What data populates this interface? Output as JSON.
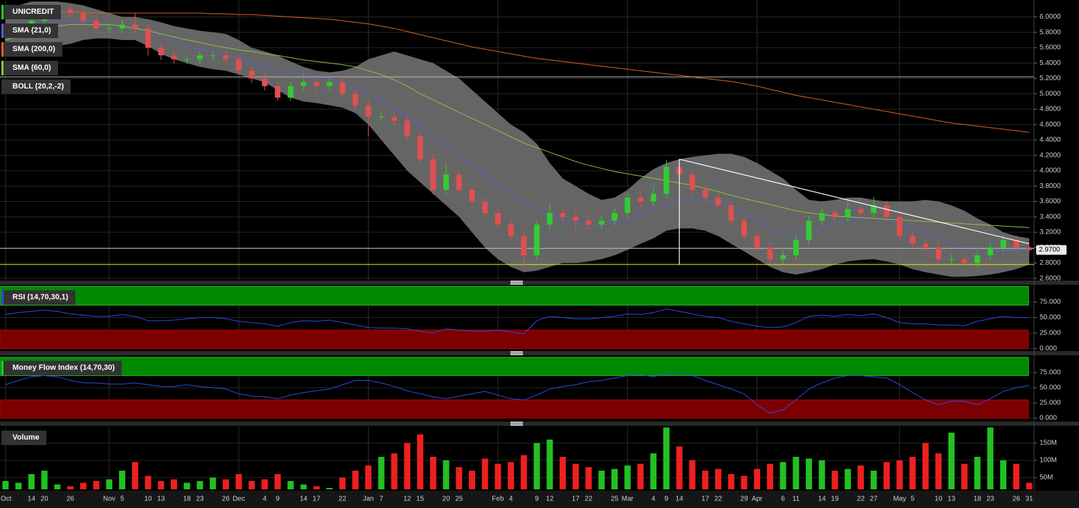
{
  "chart_data": [
    {
      "type": "candlestick",
      "title": "UNICREDIT",
      "title_color": "#22cc22",
      "categories": [
        "Oct",
        null,
        "14",
        "20",
        null,
        "26",
        null,
        null,
        "Nov",
        "5",
        null,
        "10",
        "13",
        null,
        "18",
        "23",
        null,
        "26",
        "Dec",
        null,
        "4",
        "9",
        null,
        "14",
        "17",
        null,
        "22",
        null,
        "Jan",
        "7",
        null,
        "12",
        "15",
        null,
        "20",
        "25",
        null,
        null,
        "Feb",
        "4",
        null,
        "9",
        "12",
        null,
        "17",
        "22",
        null,
        "25",
        "Mar",
        null,
        "4",
        "9",
        "14",
        null,
        "17",
        "22",
        null,
        "29",
        "Apr",
        null,
        "6",
        "11",
        null,
        "14",
        "19",
        null,
        "22",
        "27",
        null,
        "May",
        "5",
        null,
        "10",
        "13",
        null,
        "18",
        "23",
        null,
        "26",
        "31"
      ],
      "open": [
        5.75,
        5.8,
        5.85,
        5.95,
        6.05,
        6.1,
        6.05,
        5.95,
        5.85,
        5.85,
        5.9,
        5.85,
        5.6,
        5.5,
        5.45,
        5.45,
        5.5,
        5.5,
        5.45,
        5.3,
        5.2,
        5.1,
        4.95,
        5.1,
        5.15,
        5.1,
        5.15,
        5.0,
        4.85,
        4.7,
        4.7,
        4.65,
        4.45,
        4.15,
        3.75,
        3.95,
        3.75,
        3.6,
        3.45,
        3.3,
        3.15,
        2.9,
        3.3,
        3.45,
        3.4,
        3.35,
        3.3,
        3.35,
        3.45,
        3.65,
        3.6,
        3.7,
        4.05,
        3.95,
        3.75,
        3.65,
        3.55,
        3.35,
        3.15,
        3.0,
        2.85,
        2.9,
        3.1,
        3.35,
        3.45,
        3.4,
        3.5,
        3.45,
        3.55,
        3.4,
        3.15,
        3.05,
        3.0,
        2.85,
        2.85,
        2.8,
        2.9,
        3.0,
        3.1,
        3.0
      ],
      "high": [
        5.86,
        5.91,
        6.01,
        6.11,
        6.16,
        6.16,
        6.11,
        6.01,
        5.91,
        5.96,
        6.05,
        5.91,
        5.66,
        5.56,
        5.51,
        5.56,
        5.56,
        5.56,
        5.51,
        5.36,
        5.26,
        5.16,
        5.16,
        5.26,
        5.21,
        5.21,
        5.21,
        5.06,
        4.91,
        4.76,
        4.78,
        4.71,
        4.51,
        4.21,
        4.11,
        4.01,
        3.81,
        3.66,
        3.51,
        3.36,
        3.21,
        3.36,
        3.58,
        3.55,
        3.46,
        3.41,
        3.41,
        3.51,
        3.71,
        3.76,
        3.8,
        4.14,
        4.11,
        4.01,
        3.81,
        3.71,
        3.61,
        3.41,
        3.21,
        3.06,
        2.96,
        3.16,
        3.41,
        3.51,
        3.51,
        3.6,
        3.56,
        3.66,
        3.61,
        3.46,
        3.21,
        3.11,
        3.06,
        2.91,
        2.91,
        2.96,
        3.06,
        3.16,
        3.16,
        3.03
      ],
      "low": [
        5.69,
        5.74,
        5.79,
        5.89,
        5.99,
        5.99,
        5.89,
        5.79,
        5.79,
        5.79,
        5.79,
        5.5,
        5.44,
        5.39,
        5.39,
        5.39,
        5.44,
        5.39,
        5.24,
        5.14,
        5.04,
        4.91,
        4.91,
        5.04,
        5.04,
        5.04,
        4.94,
        4.79,
        4.45,
        4.64,
        4.59,
        4.39,
        4.09,
        3.69,
        3.69,
        3.69,
        3.54,
        3.39,
        3.24,
        3.09,
        2.78,
        2.84,
        3.24,
        3.34,
        3.22,
        3.24,
        3.24,
        3.29,
        3.39,
        3.54,
        3.54,
        3.64,
        3.89,
        3.69,
        3.59,
        3.49,
        3.29,
        3.09,
        2.94,
        2.79,
        2.79,
        2.84,
        3.04,
        3.29,
        3.34,
        3.34,
        3.39,
        3.39,
        3.34,
        3.09,
        2.99,
        2.94,
        2.79,
        2.79,
        2.76,
        2.74,
        2.84,
        2.94,
        2.94,
        2.94
      ],
      "close": [
        5.8,
        5.85,
        5.95,
        6.05,
        6.1,
        6.05,
        5.95,
        5.85,
        5.85,
        5.9,
        5.85,
        5.6,
        5.5,
        5.45,
        5.45,
        5.5,
        5.5,
        5.45,
        5.3,
        5.2,
        5.1,
        4.95,
        5.1,
        5.15,
        5.1,
        5.15,
        5.0,
        4.85,
        4.7,
        4.7,
        4.65,
        4.45,
        4.15,
        3.75,
        3.95,
        3.75,
        3.6,
        3.45,
        3.3,
        3.15,
        2.9,
        3.3,
        3.45,
        3.4,
        3.35,
        3.3,
        3.35,
        3.45,
        3.65,
        3.6,
        3.7,
        4.05,
        3.95,
        3.75,
        3.65,
        3.55,
        3.35,
        3.15,
        3.0,
        2.85,
        2.9,
        3.1,
        3.35,
        3.45,
        3.4,
        3.5,
        3.45,
        3.55,
        3.4,
        3.15,
        3.05,
        3.0,
        2.85,
        2.85,
        2.8,
        2.9,
        3.0,
        3.1,
        3.0,
        2.97
      ],
      "up_color": "#33cc33",
      "down_color": "#e05050",
      "series": [
        {
          "name": "SMA (21,0)",
          "color": "#5b5bdc",
          "values": [
            5.75,
            5.8,
            5.85,
            5.9,
            5.93,
            5.95,
            5.95,
            5.92,
            5.9,
            5.88,
            5.85,
            5.8,
            5.75,
            5.68,
            5.62,
            5.58,
            5.55,
            5.5,
            5.45,
            5.4,
            5.35,
            5.3,
            5.27,
            5.25,
            5.22,
            5.2,
            5.15,
            5.08,
            5.0,
            4.92,
            4.82,
            4.7,
            4.58,
            4.45,
            4.32,
            4.2,
            4.08,
            3.95,
            3.82,
            3.7,
            3.58,
            3.5,
            3.42,
            3.36,
            3.33,
            3.3,
            3.3,
            3.32,
            3.36,
            3.42,
            3.48,
            3.55,
            3.6,
            3.62,
            3.62,
            3.6,
            3.55,
            3.45,
            3.35,
            3.25,
            3.18,
            3.15,
            3.18,
            3.25,
            3.32,
            3.36,
            3.38,
            3.38,
            3.36,
            3.32,
            3.25,
            3.18,
            3.12,
            3.06,
            3.0,
            2.97,
            2.96,
            2.96,
            2.97,
            2.98
          ]
        },
        {
          "name": "SMA (200,0)",
          "color": "#e0641e",
          "values": [
            6.06,
            6.06,
            6.06,
            6.06,
            6.06,
            6.06,
            6.06,
            6.05,
            6.05,
            6.05,
            6.05,
            6.05,
            6.05,
            6.05,
            6.05,
            6.05,
            6.04,
            6.04,
            6.03,
            6.03,
            6.02,
            6.01,
            6.0,
            5.99,
            5.98,
            5.97,
            5.95,
            5.93,
            5.91,
            5.88,
            5.85,
            5.81,
            5.77,
            5.73,
            5.69,
            5.65,
            5.61,
            5.58,
            5.55,
            5.52,
            5.49,
            5.46,
            5.44,
            5.42,
            5.4,
            5.38,
            5.36,
            5.34,
            5.32,
            5.3,
            5.28,
            5.26,
            5.24,
            5.22,
            5.2,
            5.18,
            5.16,
            5.13,
            5.1,
            5.06,
            5.02,
            4.98,
            4.95,
            4.92,
            4.89,
            4.86,
            4.83,
            4.8,
            4.77,
            4.74,
            4.71,
            4.68,
            4.65,
            4.62,
            4.6,
            4.58,
            4.56,
            4.54,
            4.52,
            4.5
          ]
        },
        {
          "name": "SMA (60,0)",
          "color": "#8cc63e",
          "values": [
            5.7,
            5.75,
            5.8,
            5.85,
            5.88,
            5.9,
            5.9,
            5.9,
            5.9,
            5.88,
            5.85,
            5.82,
            5.78,
            5.74,
            5.7,
            5.67,
            5.63,
            5.6,
            5.57,
            5.55,
            5.52,
            5.5,
            5.47,
            5.44,
            5.42,
            5.4,
            5.38,
            5.35,
            5.3,
            5.25,
            5.18,
            5.1,
            5.0,
            4.92,
            4.84,
            4.76,
            4.68,
            4.6,
            4.52,
            4.44,
            4.36,
            4.3,
            4.24,
            4.18,
            4.12,
            4.07,
            4.03,
            3.99,
            3.96,
            3.93,
            3.9,
            3.87,
            3.84,
            3.81,
            3.77,
            3.73,
            3.68,
            3.64,
            3.6,
            3.56,
            3.52,
            3.48,
            3.45,
            3.43,
            3.41,
            3.4,
            3.39,
            3.38,
            3.37,
            3.36,
            3.35,
            3.34,
            3.33,
            3.32,
            3.31,
            3.3,
            3.29,
            3.28,
            3.27,
            3.26
          ]
        }
      ],
      "band": {
        "name": "BOLL (20,2,-2)",
        "color": "#707070",
        "upper": [
          6.1,
          6.15,
          6.2,
          6.2,
          6.2,
          6.18,
          6.15,
          6.1,
          6.05,
          6.0,
          6.0,
          5.97,
          5.93,
          5.88,
          5.85,
          5.82,
          5.8,
          5.78,
          5.7,
          5.6,
          5.55,
          5.5,
          5.42,
          5.35,
          5.3,
          5.28,
          5.3,
          5.35,
          5.45,
          5.5,
          5.55,
          5.5,
          5.45,
          5.4,
          5.3,
          5.2,
          5.05,
          4.9,
          4.75,
          4.6,
          4.5,
          4.35,
          4.1,
          3.9,
          3.8,
          3.7,
          3.62,
          3.65,
          3.75,
          3.9,
          4.02,
          4.1,
          4.15,
          4.18,
          4.2,
          4.22,
          4.22,
          4.18,
          4.1,
          4.0,
          3.9,
          3.75,
          3.62,
          3.6,
          3.62,
          3.65,
          3.65,
          3.62,
          3.6,
          3.6,
          3.6,
          3.62,
          3.6,
          3.55,
          3.48,
          3.38,
          3.3,
          3.2,
          3.15,
          3.12
        ],
        "lower": [
          5.55,
          5.55,
          5.6,
          5.6,
          5.62,
          5.65,
          5.7,
          5.72,
          5.72,
          5.7,
          5.7,
          5.62,
          5.52,
          5.45,
          5.4,
          5.35,
          5.32,
          5.3,
          5.25,
          5.2,
          5.15,
          5.05,
          4.95,
          4.9,
          4.88,
          4.85,
          4.82,
          4.75,
          4.6,
          4.4,
          4.2,
          4.0,
          3.85,
          3.7,
          3.55,
          3.4,
          3.2,
          3.0,
          2.85,
          2.75,
          2.68,
          2.7,
          2.75,
          2.8,
          2.8,
          2.82,
          2.85,
          2.9,
          2.97,
          3.05,
          3.12,
          3.22,
          3.25,
          3.25,
          3.22,
          3.15,
          3.05,
          2.95,
          2.85,
          2.75,
          2.68,
          2.65,
          2.68,
          2.72,
          2.78,
          2.82,
          2.84,
          2.85,
          2.82,
          2.78,
          2.72,
          2.68,
          2.65,
          2.62,
          2.62,
          2.63,
          2.65,
          2.68,
          2.72,
          2.78
        ]
      },
      "hlines": [
        {
          "value": 5.22,
          "color": "#bbbbbb"
        },
        {
          "value": 2.99,
          "color": "#bbbbbb"
        },
        {
          "value": 2.78,
          "color": "#e8e800"
        }
      ],
      "drawings": [
        {
          "x": [
            52,
            79
          ],
          "values": [
            4.15,
            3.05
          ],
          "color": "#ffffff"
        },
        {
          "x": [
            52,
            52
          ],
          "values": [
            4.15,
            2.78
          ],
          "color": "#ffffff"
        }
      ],
      "last_price": {
        "value": 2.97,
        "label": "2.9700"
      },
      "ylim": [
        2.58,
        6.22
      ],
      "yticks": [
        {
          "value": 2.6,
          "label": "2.6000"
        },
        {
          "value": 2.8,
          "label": "2.8000"
        },
        {
          "value": 3.0,
          "label": "3.0000"
        },
        {
          "value": 3.2,
          "label": "3.2000"
        },
        {
          "value": 3.4,
          "label": "3.4000"
        },
        {
          "value": 3.6,
          "label": "3.6000"
        },
        {
          "value": 3.8,
          "label": "3.8000"
        },
        {
          "value": 4.0,
          "label": "4.0000"
        },
        {
          "value": 4.2,
          "label": "4.2000"
        },
        {
          "value": 4.4,
          "label": "4.4000"
        },
        {
          "value": 4.6,
          "label": "4.6000"
        },
        {
          "value": 4.8,
          "label": "4.8000"
        },
        {
          "value": 5.0,
          "label": "5.0000"
        },
        {
          "value": 5.2,
          "label": "5.2000"
        },
        {
          "value": 5.4,
          "label": "5.4000"
        },
        {
          "value": 5.6,
          "label": "5.6000"
        },
        {
          "value": 5.8,
          "label": "5.8000"
        },
        {
          "value": 6.0,
          "label": "6.0000"
        }
      ],
      "grid": true
    },
    {
      "type": "line",
      "title": "RSI (14,70,30,1)",
      "color": "#2a4de8",
      "overbought": 70,
      "oversold": 30,
      "values": [
        55,
        58,
        60,
        62,
        60,
        56,
        54,
        52,
        52,
        55,
        52,
        45,
        45,
        46,
        48,
        50,
        50,
        48,
        44,
        42,
        40,
        36,
        42,
        45,
        44,
        46,
        42,
        38,
        34,
        33,
        33,
        32,
        28,
        25,
        32,
        30,
        28,
        28,
        30,
        27,
        24,
        45,
        52,
        50,
        48,
        48,
        50,
        52,
        56,
        55,
        58,
        64,
        60,
        56,
        52,
        50,
        44,
        40,
        36,
        34,
        35,
        42,
        52,
        54,
        52,
        55,
        53,
        56,
        50,
        42,
        40,
        40,
        38,
        38,
        37,
        44,
        48,
        52,
        50,
        50
      ],
      "ylim": [
        0,
        100
      ],
      "yticks": [
        {
          "value": 0,
          "label": "0.000"
        },
        {
          "value": 25,
          "label": "25.000"
        },
        {
          "value": 50,
          "label": "50.000"
        },
        {
          "value": 75,
          "label": "75.000"
        }
      ]
    },
    {
      "type": "line",
      "title": "Money Flow Index (14,70,30)",
      "title_color": "#22cc22",
      "color": "#2a4de8",
      "overbought": 70,
      "oversold": 30,
      "values": [
        55,
        62,
        68,
        70,
        68,
        62,
        58,
        58,
        56,
        56,
        58,
        55,
        52,
        52,
        55,
        52,
        50,
        48,
        40,
        36,
        35,
        32,
        38,
        42,
        45,
        48,
        55,
        62,
        62,
        58,
        52,
        45,
        40,
        35,
        32,
        36,
        40,
        44,
        38,
        32,
        30,
        38,
        48,
        52,
        55,
        60,
        62,
        66,
        70,
        72,
        68,
        74,
        75,
        70,
        62,
        55,
        48,
        40,
        22,
        8,
        14,
        30,
        48,
        58,
        66,
        70,
        70,
        68,
        66,
        55,
        42,
        30,
        22,
        28,
        28,
        22,
        32,
        44,
        50,
        54
      ],
      "ylim": [
        0,
        100
      ],
      "yticks": [
        {
          "value": 0,
          "label": "0.000"
        },
        {
          "value": 25,
          "label": "25.000"
        },
        {
          "value": 50,
          "label": "50.000"
        },
        {
          "value": 75,
          "label": "75.000"
        }
      ]
    },
    {
      "type": "bar",
      "title": "Volume",
      "values": [
        40,
        35,
        60,
        70,
        30,
        25,
        35,
        40,
        45,
        70,
        95,
        55,
        40,
        45,
        35,
        40,
        50,
        45,
        60,
        40,
        45,
        60,
        40,
        30,
        25,
        20,
        50,
        70,
        85,
        110,
        120,
        150,
        175,
        110,
        100,
        80,
        70,
        105,
        90,
        95,
        115,
        150,
        160,
        110,
        90,
        80,
        70,
        75,
        85,
        90,
        120,
        195,
        140,
        100,
        70,
        75,
        60,
        55,
        75,
        90,
        95,
        110,
        105,
        100,
        70,
        75,
        85,
        70,
        95,
        100,
        110,
        150,
        120,
        180,
        90,
        110,
        195,
        100,
        90,
        35
      ],
      "ylim": [
        16,
        198
      ],
      "yticks": [
        {
          "value": 50,
          "label": "50M"
        },
        {
          "value": 100,
          "label": "100M"
        },
        {
          "value": 150,
          "label": "150M"
        }
      ]
    }
  ]
}
